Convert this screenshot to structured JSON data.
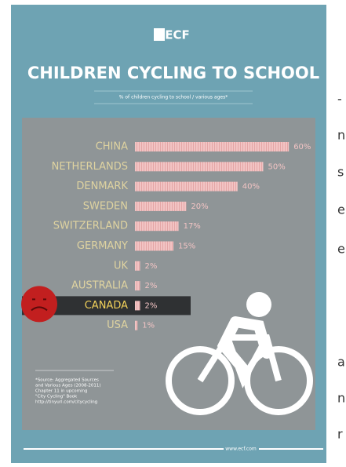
{
  "logo": "ECF",
  "margin_letters": [
    "-",
    "n",
    "s",
    "e",
    "e",
    "a",
    "n",
    "r"
  ],
  "footnote": [
    "*Source: Aggregated Sources",
    "and Various Ages (2008-2011)",
    "Chapter 11 in upcoming",
    "\"City Cycling\" Book",
    "http://tinyurl.com/citycycling"
  ],
  "footer": "www.ecf.com",
  "chart_data": {
    "type": "bar",
    "orientation": "horizontal",
    "title": "CHILDREN CYCLING TO SCHOOL",
    "subtitle": "% of children cycling to school / various ages*",
    "categories": [
      "CHINA",
      "NETHERLANDS",
      "DENMARK",
      "SWEDEN",
      "SWITZERLAND",
      "GERMANY",
      "UK",
      "AUSTRALIA",
      "CANADA",
      "USA"
    ],
    "values": [
      60,
      50,
      40,
      20,
      17,
      15,
      2,
      2,
      2,
      1
    ],
    "value_labels": [
      "60%",
      "50%",
      "40%",
      "20%",
      "17%",
      "15%",
      "2%",
      "2%",
      "2%",
      "1%"
    ],
    "color": "#f2c4c4",
    "highlight": "CANADA"
  }
}
